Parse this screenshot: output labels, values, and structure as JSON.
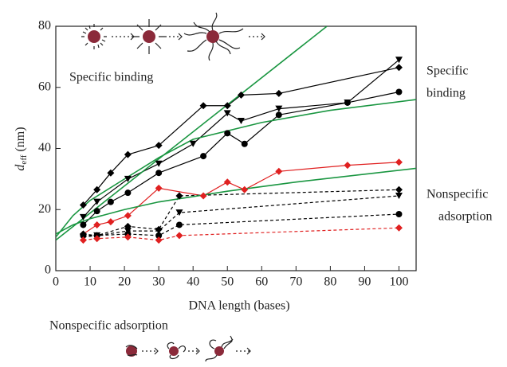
{
  "chart_data": {
    "type": "line",
    "x_label": "DNA length (bases)",
    "y_label": {
      "main": "d",
      "sub": "eff",
      "unit": "(nm)"
    },
    "annotations": {
      "inner": "Specific binding",
      "right_top": [
        "Specific",
        "binding"
      ],
      "right_bottom": [
        "Nonspecific",
        "adsorption"
      ],
      "bottom": "Nonspecific adsorption"
    },
    "xlim": [
      0,
      105
    ],
    "xticks": [
      0,
      10,
      20,
      30,
      40,
      50,
      60,
      70,
      80,
      90,
      100
    ],
    "ylim": [
      0,
      80
    ],
    "yticks": [
      0,
      20,
      40,
      60,
      80
    ],
    "series": [
      {
        "color": "#000000",
        "marker": "diamond",
        "dash": false,
        "x": [
          8,
          12,
          16,
          21,
          30,
          43,
          50,
          54,
          65,
          100
        ],
        "values": [
          21.5,
          26.5,
          32,
          38,
          41,
          54,
          54,
          57.5,
          58,
          66.5
        ]
      },
      {
        "color": "#000000",
        "marker": "triangle",
        "dash": false,
        "x": [
          8,
          12,
          21,
          30,
          40,
          50,
          54,
          65,
          85,
          100
        ],
        "values": [
          17.5,
          22.5,
          30,
          35,
          41.5,
          51.5,
          49,
          53,
          55,
          69
        ]
      },
      {
        "color": "#000000",
        "marker": "circle",
        "dash": false,
        "x": [
          8,
          12,
          16,
          21,
          30,
          43,
          50,
          55,
          65,
          85,
          100
        ],
        "values": [
          15,
          19.5,
          22.5,
          25.5,
          32,
          37.5,
          45,
          41.5,
          51,
          55,
          58.5
        ]
      },
      {
        "color": "#e02020",
        "marker": "diamond",
        "dash": false,
        "x": [
          8,
          12,
          16,
          21,
          30,
          43,
          50,
          55,
          65,
          85,
          100
        ],
        "values": [
          12,
          15,
          16,
          18,
          27,
          24.5,
          29,
          26.5,
          32.5,
          34.5,
          35.5
        ]
      },
      {
        "color": "#000000",
        "marker": "diamond",
        "dash": true,
        "x": [
          8,
          12,
          21,
          30,
          36,
          100
        ],
        "values": [
          12,
          11.5,
          14.5,
          13.5,
          24.5,
          26.5
        ]
      },
      {
        "color": "#000000",
        "marker": "triangle",
        "dash": true,
        "x": [
          8,
          12,
          21,
          30,
          36,
          100
        ],
        "values": [
          11,
          11.5,
          13,
          13,
          19,
          24.5
        ]
      },
      {
        "color": "#000000",
        "marker": "circle",
        "dash": true,
        "x": [
          8,
          12,
          21,
          30,
          36,
          100
        ],
        "values": [
          11.5,
          11.5,
          12,
          11.5,
          15,
          18.5
        ]
      },
      {
        "color": "#e02020",
        "marker": "diamond",
        "dash": true,
        "x": [
          8,
          12,
          21,
          30,
          36,
          100
        ],
        "values": [
          10,
          10.5,
          11,
          10,
          11.5,
          14
        ]
      },
      {
        "color": "#1a9641",
        "marker": "none",
        "dash": false,
        "x": [
          0,
          79
        ],
        "values": [
          10,
          80
        ]
      },
      {
        "color": "#1a9641",
        "marker": "none",
        "dash": false,
        "x": [
          0,
          5,
          10,
          20,
          30,
          40,
          60,
          80,
          105
        ],
        "values": [
          11,
          18,
          23,
          30,
          37,
          43,
          48.5,
          52.5,
          56
        ]
      },
      {
        "color": "#1a9641",
        "marker": "none",
        "dash": false,
        "x": [
          0,
          5,
          10,
          20,
          30,
          50,
          70,
          105
        ],
        "values": [
          12,
          15,
          17,
          20,
          22.5,
          26,
          29,
          33.5
        ]
      }
    ]
  }
}
